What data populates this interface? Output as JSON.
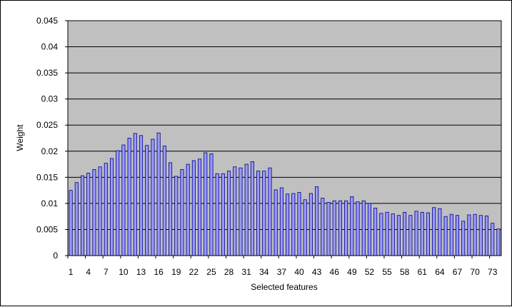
{
  "chart_data": {
    "type": "bar",
    "xlabel": "Selected features",
    "ylabel": "Weight",
    "ylim": [
      0,
      0.045
    ],
    "yticks": [
      "0",
      "0.005",
      "0.01",
      "0.015",
      "0.02",
      "0.025",
      "0.03",
      "0.035",
      "0.04",
      "0.045"
    ],
    "xtick_labels": [
      "1",
      "4",
      "7",
      "10",
      "13",
      "16",
      "19",
      "22",
      "25",
      "28",
      "31",
      "34",
      "37",
      "40",
      "43",
      "46",
      "49",
      "52",
      "55",
      "58",
      "61",
      "64",
      "67",
      "70",
      "73"
    ],
    "grid": true,
    "legend": "none",
    "categories": [
      1,
      2,
      3,
      4,
      5,
      6,
      7,
      8,
      9,
      10,
      11,
      12,
      13,
      14,
      15,
      16,
      17,
      18,
      19,
      20,
      21,
      22,
      23,
      24,
      25,
      26,
      27,
      28,
      29,
      30,
      31,
      32,
      33,
      34,
      35,
      36,
      37,
      38,
      39,
      40,
      41,
      42,
      43,
      44,
      45,
      46,
      47,
      48,
      49,
      50,
      51,
      52,
      53,
      54,
      55,
      56,
      57,
      58,
      59,
      60,
      61,
      62,
      63,
      64,
      65,
      66,
      67,
      68,
      69,
      70,
      71,
      72,
      73,
      74
    ],
    "values": [
      0.0125,
      0.014,
      0.0153,
      0.0158,
      0.0165,
      0.017,
      0.0177,
      0.0186,
      0.0201,
      0.0212,
      0.0225,
      0.0234,
      0.023,
      0.0211,
      0.0223,
      0.0235,
      0.021,
      0.0178,
      0.0152,
      0.0165,
      0.0175,
      0.0182,
      0.0185,
      0.0197,
      0.0195,
      0.0157,
      0.0157,
      0.0162,
      0.017,
      0.0168,
      0.0175,
      0.018,
      0.0162,
      0.0162,
      0.0168,
      0.0126,
      0.013,
      0.0118,
      0.0119,
      0.0121,
      0.0107,
      0.0119,
      0.0132,
      0.011,
      0.0102,
      0.0105,
      0.0105,
      0.0105,
      0.0113,
      0.0103,
      0.0105,
      0.01,
      0.0091,
      0.0081,
      0.0083,
      0.008,
      0.0077,
      0.0083,
      0.0077,
      0.0085,
      0.0083,
      0.0082,
      0.0092,
      0.009,
      0.0075,
      0.0079,
      0.0077,
      0.0066,
      0.0078,
      0.0079,
      0.0077,
      0.0076,
      0.0062,
      0.0051
    ],
    "colors": {
      "plot_bg": "#c0c0c0",
      "bar_fill": "#9999ff",
      "bar_stroke": "#000080",
      "grid": "#000000",
      "frame": "#000000"
    }
  }
}
